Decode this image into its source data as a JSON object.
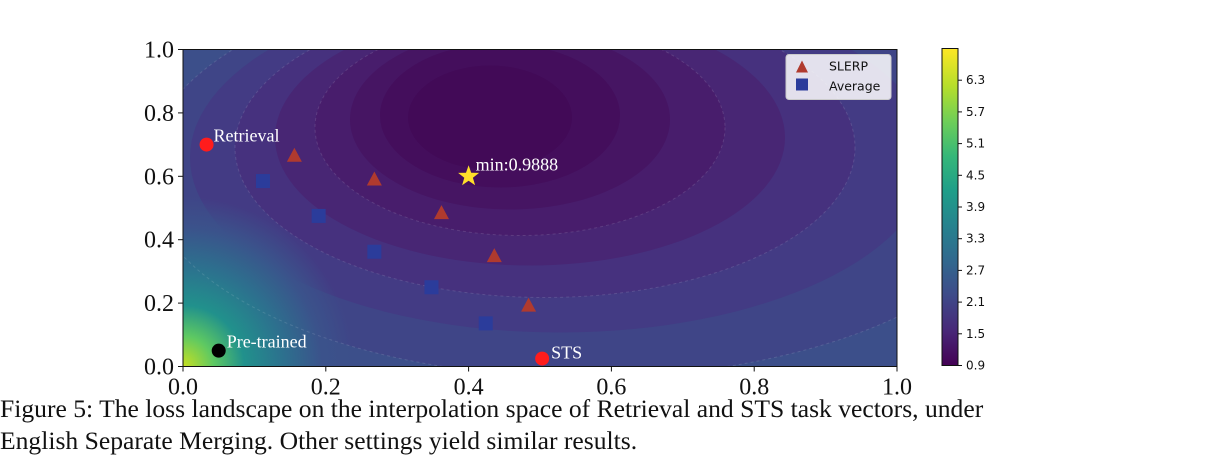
{
  "chart_data": {
    "type": "contour",
    "xlim": [
      0.0,
      1.0
    ],
    "ylim": [
      0.0,
      1.0
    ],
    "x_ticks": [
      "0.0",
      "0.2",
      "0.4",
      "0.6",
      "0.8",
      "1.0"
    ],
    "y_ticks": [
      "0.0",
      "0.2",
      "0.4",
      "0.6",
      "0.8",
      "1.0"
    ],
    "colormap": "viridis",
    "colorbar": {
      "range": [
        0.9,
        6.9
      ],
      "ticks": [
        "0.9",
        "1.5",
        "2.1",
        "2.7",
        "3.3",
        "3.9",
        "4.5",
        "5.1",
        "5.7",
        "6.3"
      ]
    },
    "grid": false,
    "legend_placement": "top-right",
    "series": [
      {
        "name": "SLERP",
        "marker": "triangle",
        "color": "#b03a2e",
        "points": [
          [
            0.156,
            0.665
          ],
          [
            0.268,
            0.59
          ],
          [
            0.362,
            0.484
          ],
          [
            0.436,
            0.348
          ],
          [
            0.484,
            0.192
          ]
        ]
      },
      {
        "name": "Average",
        "marker": "square",
        "color": "#2b3c9b",
        "points": [
          [
            0.112,
            0.585
          ],
          [
            0.19,
            0.475
          ],
          [
            0.268,
            0.362
          ],
          [
            0.348,
            0.25
          ],
          [
            0.424,
            0.136
          ]
        ]
      }
    ],
    "annotations": [
      {
        "label": "Retrieval",
        "x": 0.033,
        "y": 0.7,
        "color": "#ff1c1c"
      },
      {
        "label": "STS",
        "x": 0.503,
        "y": 0.025,
        "color": "#ff1c1c"
      },
      {
        "label": "Pre-trained",
        "x": 0.05,
        "y": 0.05,
        "color": "#000000"
      },
      {
        "label": "min:0.9888",
        "x": 0.4,
        "y": 0.6,
        "color": "#ffdf2a",
        "marker": "star"
      }
    ]
  },
  "caption": {
    "line1": "Figure 5: The loss landscape on the interpolation space of Retrieval and STS task vectors, under",
    "line2": "English Separate Merging. Other settings yield similar results."
  }
}
